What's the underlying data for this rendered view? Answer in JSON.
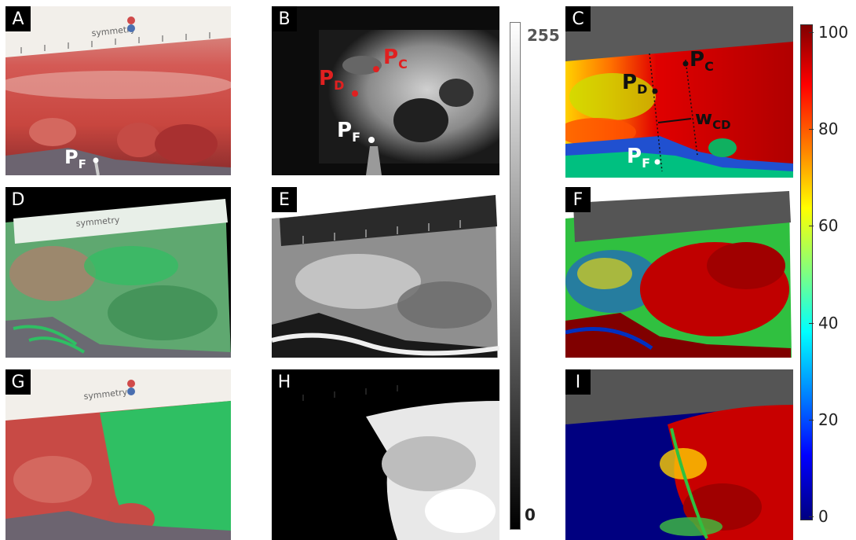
{
  "panels": {
    "a": {
      "label": "A",
      "pf": "P",
      "pf_sub": "F"
    },
    "b": {
      "label": "B",
      "pd": "P",
      "pd_sub": "D",
      "pc": "P",
      "pc_sub": "C",
      "pf": "P",
      "pf_sub": "F"
    },
    "c": {
      "label": "C",
      "pd": "P",
      "pd_sub": "D",
      "pc": "P",
      "pc_sub": "C",
      "pf": "P",
      "pf_sub": "F",
      "wcd": "w",
      "wcd_sub": "CD"
    },
    "d": {
      "label": "D"
    },
    "e": {
      "label": "E"
    },
    "f": {
      "label": "F"
    },
    "g": {
      "label": "G"
    },
    "h": {
      "label": "H"
    },
    "i": {
      "label": "I"
    }
  },
  "ruler_text": "symmetry",
  "gray_scale": {
    "max": "255",
    "min": "0"
  },
  "color_scale": {
    "ticks": [
      "100",
      "80",
      "60",
      "40",
      "20",
      "0"
    ]
  },
  "colors": {
    "tissue_red": "#c0393a",
    "overlay_green": "#2fbf63",
    "probe_red": "#e02020",
    "jet_high": "#a00000",
    "jet_low": "#000080"
  }
}
